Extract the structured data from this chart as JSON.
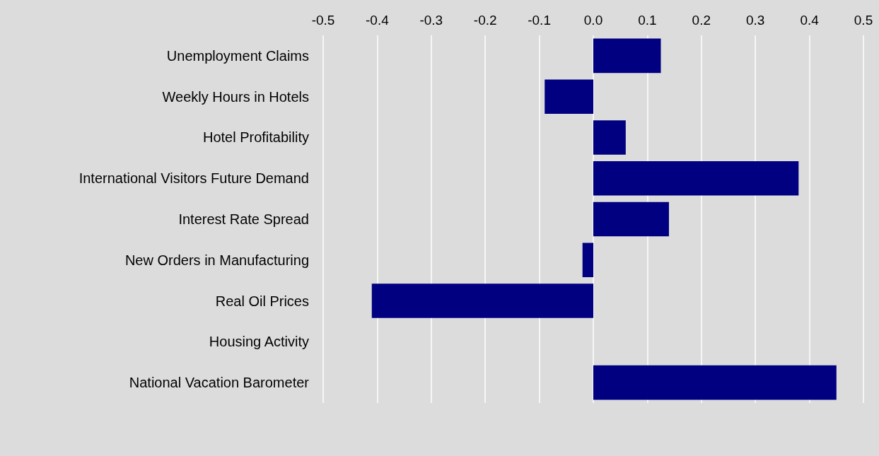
{
  "chart_data": {
    "type": "bar",
    "orientation": "horizontal",
    "categories": [
      "Unemployment Claims",
      "Weekly Hours in Hotels",
      "Hotel Profitability",
      "International Visitors Future Demand",
      "Interest Rate Spread",
      "New Orders in Manufacturing",
      "Real Oil Prices",
      "Housing Activity",
      "National Vacation Barometer"
    ],
    "values": [
      0.125,
      -0.09,
      0.06,
      0.38,
      0.14,
      -0.02,
      -0.41,
      0,
      0.45
    ],
    "color": "#000080",
    "xlim": [
      -0.5,
      0.5
    ],
    "xticks": [
      -0.5,
      -0.4,
      -0.3,
      -0.2,
      -0.1,
      {
        "value": 0,
        "label": "0.0"
      },
      0.1,
      0.2,
      0.3,
      0.4,
      0.5
    ],
    "grid": "x"
  }
}
